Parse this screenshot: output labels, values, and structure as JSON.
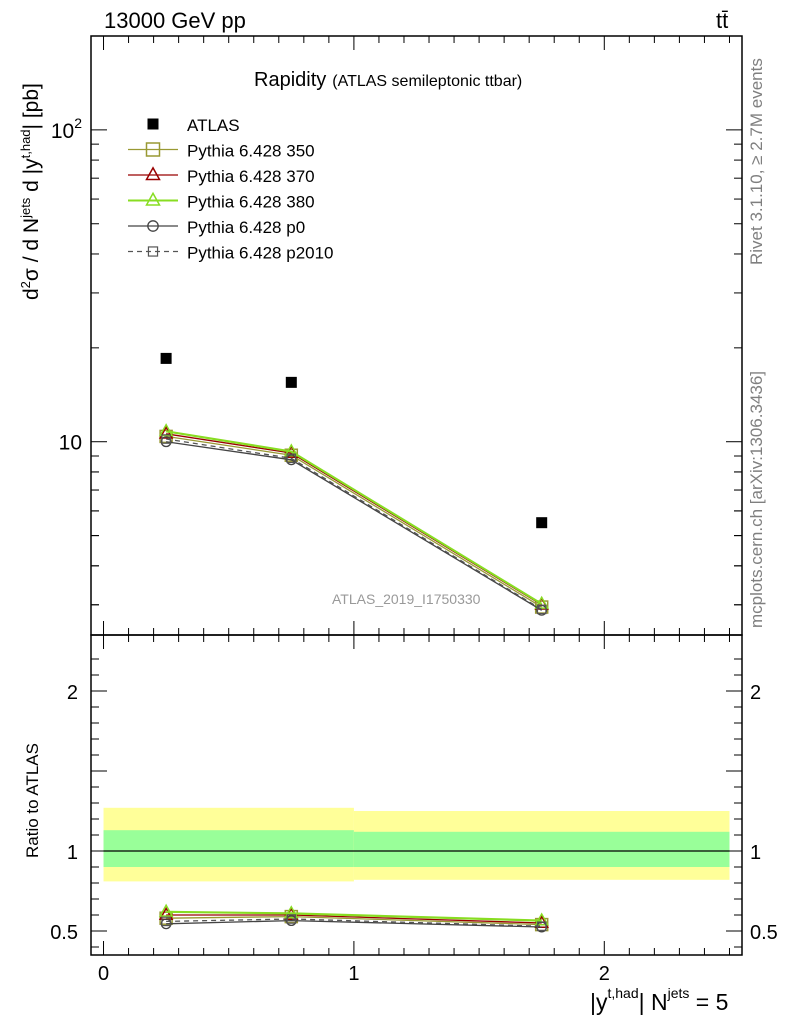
{
  "header": {
    "energy_label": "13000 GeV pp",
    "process_label": "tt̄"
  },
  "side_labels": {
    "rivet": "Rivet 3.1.10, ≥ 2.7M events",
    "mcplots": "mcplots.cern.ch [arXiv:1306.3436]"
  },
  "colors": {
    "atlas": "#000000",
    "p350": "#999933",
    "p370": "#990000",
    "p380": "#88dd22",
    "p0": "#444444",
    "p2010": "#555555",
    "band_inner": "#99ff99",
    "band_outer": "#ffff99"
  },
  "chart_data": {
    "type": "line",
    "title": "Rapidity",
    "subtitle": "(ATLAS semileptonic ttbar)",
    "watermark": "ATLAS_2019_I1750330",
    "xlabel_main": "|y",
    "xlabel_sup": "t,had",
    "xlabel_tail": "| N",
    "xlabel_sup2": "jets",
    "xlabel_end": " = 5",
    "ylabel_top": "d²σ / d N^jets d |y^t,had| [pb]",
    "ylabel_ratio": "Ratio to ATLAS",
    "xlim": [
      -0.05,
      2.55
    ],
    "upper_ylim": [
      2.4,
      200
    ],
    "upper_yscale": "log",
    "ratio_ylim": [
      0.35,
      2.35
    ],
    "x_ticks": [
      "0",
      "1",
      "2"
    ],
    "upper_y_ticks": [
      "10",
      "10²"
    ],
    "ratio_y_ticks": [
      "0.5",
      "1",
      "2"
    ],
    "grid": false,
    "legend_position": "top-left",
    "reference": {
      "name": "ATLAS",
      "x": [
        0.25,
        0.75,
        1.75
      ],
      "y": [
        18.5,
        15.5,
        5.5
      ]
    },
    "bands": [
      {
        "x_range": [
          0,
          1
        ],
        "inner": [
          0.9,
          1.13
        ],
        "outer": [
          0.81,
          1.27
        ]
      },
      {
        "x_range": [
          1,
          2.5
        ],
        "inner": [
          0.9,
          1.12
        ],
        "outer": [
          0.82,
          1.25
        ]
      }
    ],
    "series": [
      {
        "name": "Pythia 6.428 350",
        "key": "p350",
        "marker": "square",
        "dash": false,
        "x": [
          0.25,
          0.75,
          1.75
        ],
        "y": [
          10.4,
          9.05,
          2.95
        ],
        "ratio": [
          0.58,
          0.59,
          0.54
        ]
      },
      {
        "name": "Pythia 6.428 370",
        "key": "p370",
        "marker": "triangle",
        "dash": false,
        "x": [
          0.25,
          0.75,
          1.75
        ],
        "y": [
          10.6,
          9.2,
          3.0
        ],
        "ratio": [
          0.6,
          0.6,
          0.55
        ]
      },
      {
        "name": "Pythia 6.428 380",
        "key": "p380",
        "marker": "triangle",
        "dash": false,
        "x": [
          0.25,
          0.75,
          1.75
        ],
        "y": [
          10.8,
          9.3,
          3.02
        ],
        "ratio": [
          0.62,
          0.61,
          0.565
        ]
      },
      {
        "name": "Pythia 6.428 p0",
        "key": "p0",
        "marker": "circle",
        "dash": false,
        "x": [
          0.25,
          0.75,
          1.75
        ],
        "y": [
          10.0,
          8.75,
          2.88
        ],
        "ratio": [
          0.545,
          0.565,
          0.525
        ]
      },
      {
        "name": "Pythia 6.428 p2010",
        "key": "p2010",
        "marker": "open-square",
        "dash": true,
        "x": [
          0.25,
          0.75,
          1.75
        ],
        "y": [
          10.2,
          8.85,
          2.9
        ],
        "ratio": [
          0.56,
          0.575,
          0.53
        ]
      }
    ]
  }
}
